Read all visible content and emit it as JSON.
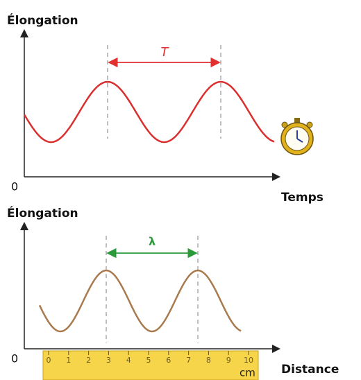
{
  "top": {
    "title": "Élongation",
    "origin": "0",
    "period_label": "T",
    "axis_label": "Temps"
  },
  "bottom": {
    "title": "Élongation",
    "origin": "0",
    "wavelength_label": "λ",
    "axis_label": "Distance"
  },
  "ruler": {
    "ticks": [
      0,
      1,
      2,
      3,
      4,
      5,
      6,
      7,
      8,
      9,
      10
    ],
    "unit": "cm"
  }
}
